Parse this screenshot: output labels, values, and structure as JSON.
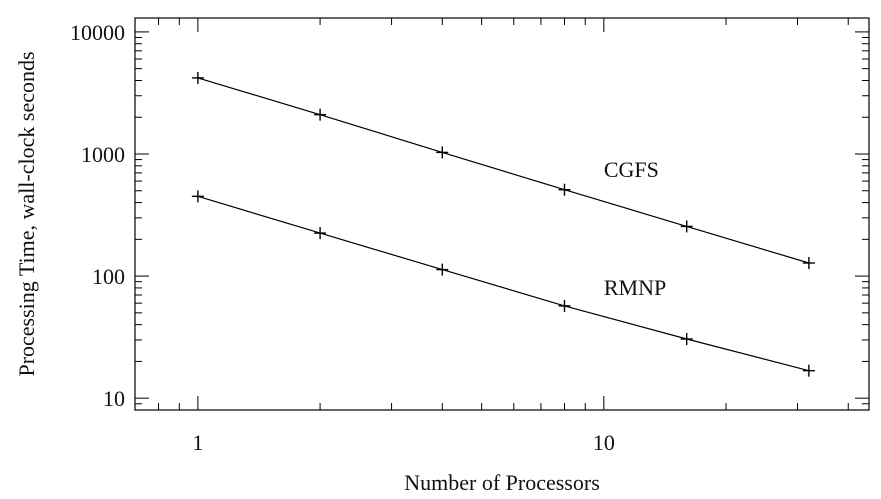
{
  "chart_data": {
    "type": "line",
    "title": "",
    "xlabel": "Number of Processors",
    "ylabel": "Processing Time, wall-clock seconds",
    "xscale": "log",
    "yscale": "log",
    "xlim": [
      0.7,
      45
    ],
    "ylim": [
      8,
      13000
    ],
    "x_ticks": [
      {
        "value": 1,
        "label": "1"
      },
      {
        "value": 10,
        "label": "10"
      }
    ],
    "y_ticks": [
      {
        "value": 10,
        "label": "10"
      },
      {
        "value": 100,
        "label": "100"
      },
      {
        "value": 1000,
        "label": "1000"
      },
      {
        "value": 10000,
        "label": "10000"
      }
    ],
    "grid": false,
    "legend": "none",
    "marker": "plus",
    "color": "#000000",
    "series": [
      {
        "name": "CGFS",
        "x": [
          1,
          2,
          4,
          8,
          16,
          32
        ],
        "y": [
          4200,
          2100,
          1030,
          510,
          255,
          128
        ],
        "label_at": {
          "x": 10,
          "y": 650
        }
      },
      {
        "name": "RMNP",
        "x": [
          1,
          2,
          4,
          8,
          16,
          32
        ],
        "y": [
          450,
          225,
          113,
          57,
          30.5,
          16.8
        ],
        "label_at": {
          "x": 10,
          "y": 70
        }
      }
    ]
  }
}
